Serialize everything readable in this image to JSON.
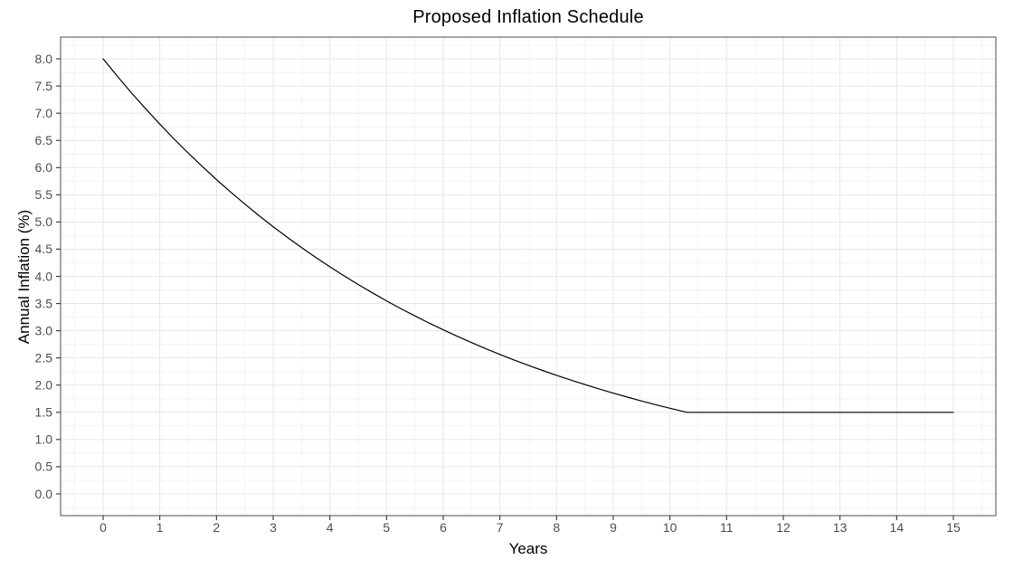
{
  "chart_data": {
    "type": "line",
    "title": "Proposed Inflation Schedule",
    "xlabel": "Years",
    "ylabel": "Annual Inflation (%)",
    "xlim": [
      -0.75,
      15.75
    ],
    "ylim": [
      -0.4,
      8.4
    ],
    "x_ticks": [
      0,
      1,
      2,
      3,
      4,
      5,
      6,
      7,
      8,
      9,
      10,
      11,
      12,
      13,
      14,
      15
    ],
    "x_tick_labels": [
      "0",
      "1",
      "2",
      "3",
      "4",
      "5",
      "6",
      "7",
      "8",
      "9",
      "10",
      "11",
      "12",
      "13",
      "14",
      "15"
    ],
    "y_ticks": [
      0,
      0.5,
      1,
      1.5,
      2,
      2.5,
      3,
      3.5,
      4,
      4.5,
      5,
      5.5,
      6,
      6.5,
      7,
      7.5,
      8
    ],
    "y_tick_labels": [
      "0.0",
      "0.5",
      "1.0",
      "1.5",
      "2.0",
      "2.5",
      "3.0",
      "3.5",
      "4.0",
      "4.5",
      "5.0",
      "5.5",
      "6.0",
      "6.5",
      "7.0",
      "7.5",
      "8.0"
    ],
    "grid": {
      "major": true,
      "minor": true
    },
    "legend_position": "none",
    "series": [
      {
        "name": "Annual inflation",
        "color": "#000000",
        "points": [
          [
            0,
            8.0
          ],
          [
            0.25,
            7.681
          ],
          [
            0.5,
            7.376
          ],
          [
            0.75,
            7.082
          ],
          [
            1,
            6.8
          ],
          [
            1.25,
            6.529
          ],
          [
            1.5,
            6.269
          ],
          [
            1.75,
            6.02
          ],
          [
            2,
            5.78
          ],
          [
            2.25,
            5.55
          ],
          [
            2.5,
            5.329
          ],
          [
            2.75,
            5.117
          ],
          [
            3,
            4.913
          ],
          [
            3.25,
            4.717
          ],
          [
            3.5,
            4.53
          ],
          [
            3.75,
            4.349
          ],
          [
            4,
            4.176
          ],
          [
            4.25,
            4.01
          ],
          [
            4.5,
            3.85
          ],
          [
            4.75,
            3.697
          ],
          [
            5,
            3.55
          ],
          [
            5.25,
            3.408
          ],
          [
            5.5,
            3.273
          ],
          [
            5.75,
            3.142
          ],
          [
            6,
            3.017
          ],
          [
            6.25,
            2.897
          ],
          [
            6.5,
            2.782
          ],
          [
            6.75,
            2.671
          ],
          [
            7,
            2.565
          ],
          [
            7.25,
            2.463
          ],
          [
            7.5,
            2.364
          ],
          [
            7.75,
            2.27
          ],
          [
            8,
            2.18
          ],
          [
            8.25,
            2.093
          ],
          [
            8.5,
            2.01
          ],
          [
            8.75,
            1.93
          ],
          [
            9,
            1.853
          ],
          [
            9.25,
            1.779
          ],
          [
            9.5,
            1.708
          ],
          [
            9.75,
            1.64
          ],
          [
            10,
            1.575
          ],
          [
            10.25,
            1.512
          ],
          [
            10.3,
            1.5
          ],
          [
            11,
            1.5
          ],
          [
            12,
            1.5
          ],
          [
            13,
            1.5
          ],
          [
            14,
            1.5
          ],
          [
            15,
            1.5
          ]
        ]
      }
    ]
  },
  "style": {
    "background": "#ffffff",
    "panel_background": "#ffffff",
    "major_grid": "#e7e7e7",
    "minor_grid": "#f4f4f4",
    "panel_border": "#6b6b6b",
    "tick_color": "#333333",
    "tick_label_color": "#4d4d4d",
    "title_color": "#000000",
    "line_color": "#000000"
  }
}
